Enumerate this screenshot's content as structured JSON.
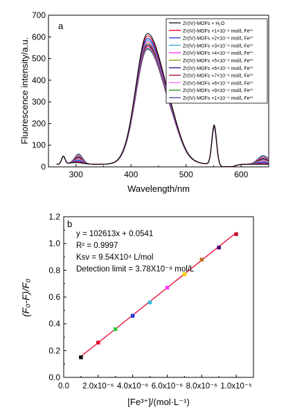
{
  "chart_data": [
    {
      "panel_label": "a",
      "type": "line",
      "xlabel": "Wavelength/nm",
      "ylabel": "Fluorescence intensity/a.u.",
      "xlim": [
        250,
        650
      ],
      "ylim": [
        0,
        700
      ],
      "x_ticks": [
        "300",
        "400",
        "500",
        "600"
      ],
      "x_tick_values": [
        300,
        400,
        500,
        600
      ],
      "y_ticks": [
        "0",
        "100",
        "200",
        "300",
        "400",
        "500",
        "600",
        "700"
      ],
      "y_tick_values": [
        0,
        100,
        200,
        300,
        400,
        500,
        600,
        700
      ],
      "legend_position": "top-right",
      "series": [
        {
          "name": "Zr(IV)-MOFs + H₂O",
          "color": "#000000",
          "peak": 628,
          "side_peak": 212
        },
        {
          "name": "Zr(IV)-MOFs +1×10⁻⁶ mol/L Fe³⁺",
          "color": "#e8002a",
          "peak": 617,
          "side_peak": 210
        },
        {
          "name": "Zr(IV)-MOFs +2×10⁻⁶ mol/L Fe³⁺",
          "color": "#1f2fd1",
          "peak": 606,
          "side_peak": 208
        },
        {
          "name": "Zr(IV)-MOFs +3×10⁻⁶ mol/L Fe³⁺",
          "color": "#2aa7c9",
          "peak": 598,
          "side_peak": 207
        },
        {
          "name": "Zr(IV)-MOFs +4×10⁻⁶ mol/L Fe³⁺",
          "color": "#ff33ff",
          "peak": 590,
          "side_peak": 206
        },
        {
          "name": "Zr(IV)-MOFs +5×10⁻⁶ mol/L Fe³⁺",
          "color": "#8a8a00",
          "peak": 582,
          "side_peak": 205
        },
        {
          "name": "Zr(IV)-MOFs +6×10⁻⁶ mol/L Fe³⁺",
          "color": "#1d1d8f",
          "peak": 575,
          "side_peak": 204
        },
        {
          "name": "Zr(IV)-MOFs +7×10⁻⁶ mol/L Fe³⁺",
          "color": "#a3001b",
          "peak": 569,
          "side_peak": 203
        },
        {
          "name": "Zr(IV)-MOFs +8×10⁻⁶ mol/L Fe³⁺",
          "color": "#ff66ff",
          "peak": 563,
          "side_peak": 202
        },
        {
          "name": "Zr(IV)-MOFs +9×10⁻⁶ mol/L Fe³⁺",
          "color": "#2e9b2e",
          "peak": 558,
          "side_peak": 201
        },
        {
          "name": "Zr(IV)-MOFs +1×10⁻⁵ mol/L Fe³⁺",
          "color": "#3a3aa8",
          "peak": 553,
          "side_peak": 200
        }
      ]
    },
    {
      "panel_label": "b",
      "type": "scatter",
      "xlabel": "[Fe³⁺]/(mol·L⁻¹)",
      "ylabel": "(F₀-F)/F₀",
      "xlim": [
        0,
        1.1e-05
      ],
      "ylim": [
        0,
        1.2
      ],
      "x_ticks": [
        "0.0",
        "2.0x10⁻⁶",
        "4.0x10⁻⁶",
        "6.0x10⁻⁶",
        "8.0x10⁻⁶",
        "1.0x10⁻⁵"
      ],
      "x_tick_values": [
        0,
        2e-06,
        4e-06,
        6e-06,
        8e-06,
        1e-05
      ],
      "y_ticks": [
        "0.0",
        "0.2",
        "0.4",
        "0.6",
        "0.8",
        "1.0",
        "1.2"
      ],
      "y_tick_values": [
        0,
        0.2,
        0.4,
        0.6,
        0.8,
        1.0,
        1.2
      ],
      "annotations": [
        "y = 102613x + 0.0541",
        "R² = 0.9997",
        "Ksv = 9.54X10⁴ L/mol",
        "Detection limit = 3.78X10⁻⁸ mol/L"
      ],
      "fit": {
        "slope": 102613,
        "intercept": 0.0541,
        "color": "#e8002a"
      },
      "points": [
        {
          "x": 1e-06,
          "y": 0.15,
          "color": "#000000"
        },
        {
          "x": 2e-06,
          "y": 0.26,
          "color": "#e8002a"
        },
        {
          "x": 3e-06,
          "y": 0.36,
          "color": "#33cc33"
        },
        {
          "x": 4e-06,
          "y": 0.46,
          "color": "#2233cc"
        },
        {
          "x": 5e-06,
          "y": 0.56,
          "color": "#33bbdd"
        },
        {
          "x": 6e-06,
          "y": 0.67,
          "color": "#ff33ff"
        },
        {
          "x": 7e-06,
          "y": 0.77,
          "color": "#ffcc00"
        },
        {
          "x": 8e-06,
          "y": 0.88,
          "color": "#c07020"
        },
        {
          "x": 9e-06,
          "y": 0.97,
          "color": "#4b0082"
        },
        {
          "x": 1e-05,
          "y": 1.07,
          "color": "#c8102e"
        }
      ]
    }
  ]
}
